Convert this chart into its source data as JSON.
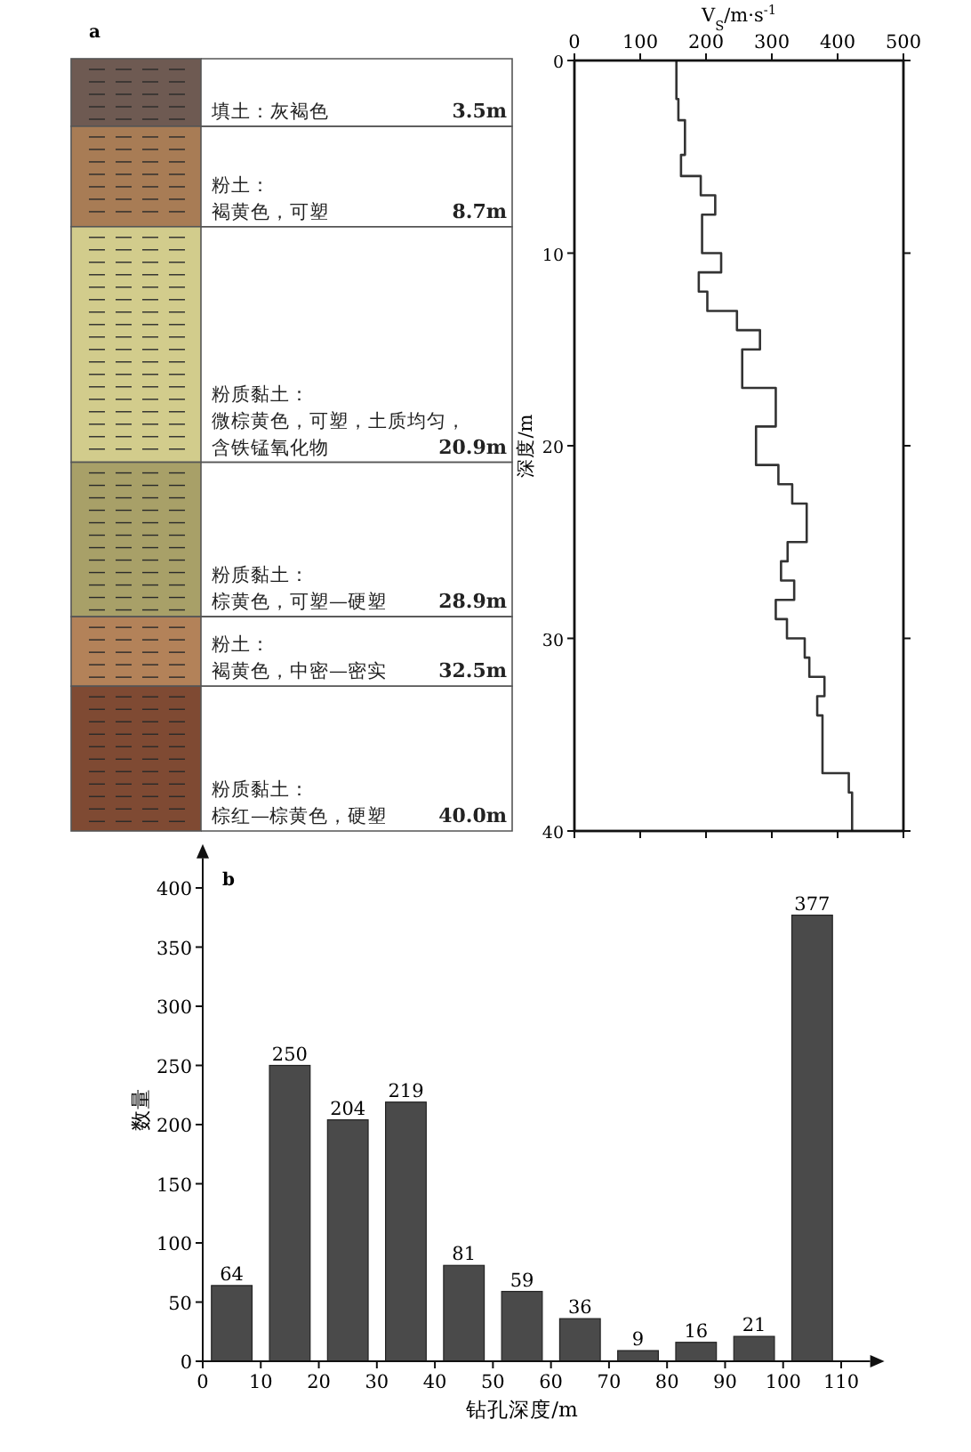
{
  "chart_data": [
    {
      "type": "other",
      "title": "a",
      "categories": [
        "填土：灰褐色",
        "粉土：褐黄色，可塑",
        "粉质黏土：微棕黄色，可塑，土质均匀，含铁锰氧化物",
        "粉质黏土：棕黄色，可塑—硬塑",
        "粉土：褐黄色，中密—密实",
        "粉质黏土：棕红—棕黄色，硬塑"
      ],
      "values": [
        3.5,
        8.7,
        20.9,
        28.9,
        32.5,
        40.0
      ],
      "value_labels": [
        "3.5m",
        "8.7m",
        "20.9m",
        "28.9m",
        "32.5m",
        "40.0m"
      ],
      "colors": [
        "#6e5a52",
        "#a87c55",
        "#d2cc8c",
        "#a8a068",
        "#b38259",
        "#7f4a33"
      ]
    },
    {
      "type": "line",
      "xlabel": "V$_{S}$/m·s$^{-1}$",
      "ylabel": "深度/m",
      "xlim": [
        0,
        500
      ],
      "xticks": [
        0,
        100,
        200,
        300,
        400,
        500
      ],
      "ylim": [
        40,
        0
      ],
      "yticks": [
        0,
        10,
        20,
        30,
        40
      ],
      "series": [
        {
          "color": "#333333",
          "x": [
            155,
            155,
            158,
            158,
            168,
            168,
            162,
            162,
            192,
            192,
            214,
            214,
            194,
            194,
            223,
            223,
            189,
            189,
            202,
            202,
            247,
            247,
            282,
            282,
            255,
            255,
            306,
            306,
            276,
            276,
            310,
            310,
            331,
            331,
            353,
            353,
            324,
            324,
            314,
            314,
            334,
            334,
            306,
            306,
            323,
            323,
            350,
            350,
            357,
            357,
            380,
            380,
            369,
            369,
            377,
            377,
            417,
            417,
            422,
            422
          ],
          "values": [
            0,
            2,
            2,
            3.1,
            3.1,
            4.9,
            4.9,
            6,
            6,
            7,
            7,
            8,
            8,
            10,
            10,
            11,
            11,
            12,
            12,
            13,
            13,
            14,
            14,
            15,
            15,
            17,
            17,
            19,
            19,
            21,
            21,
            22,
            22,
            23,
            23,
            25,
            25,
            26,
            26,
            27,
            27,
            28,
            28,
            29,
            29,
            30,
            30,
            31,
            31,
            32,
            32,
            33,
            33,
            34,
            34,
            37,
            37,
            38,
            38,
            40
          ]
        }
      ]
    },
    {
      "type": "bar",
      "title": "b",
      "xlabel": "钻孔深度/m",
      "ylabel": "数量",
      "x": [
        5,
        15,
        25,
        35,
        45,
        55,
        65,
        75,
        85,
        95,
        105
      ],
      "values": [
        64,
        250,
        204,
        219,
        81,
        59,
        36,
        9,
        16,
        21,
        377
      ],
      "color": "#4a4a4a",
      "data_labels": true,
      "xlim": [
        0,
        115
      ],
      "xticks": [
        0,
        10,
        20,
        30,
        40,
        50,
        60,
        70,
        80,
        90,
        100,
        110
      ],
      "ylim": [
        0,
        425
      ],
      "yticks": [
        0,
        50,
        100,
        150,
        200,
        250,
        300,
        350,
        400
      ]
    }
  ]
}
